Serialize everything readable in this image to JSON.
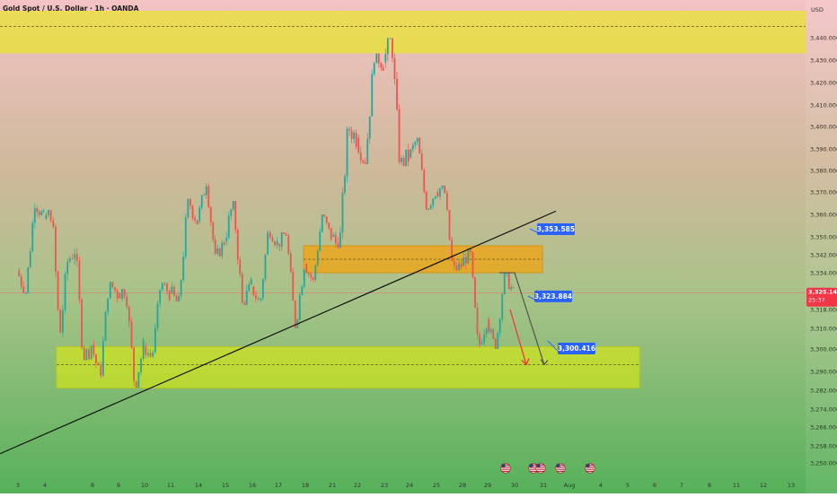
{
  "symbol_title": "Gold Spot / U.S. Dollar · 1h · OANDA",
  "currency": "USD",
  "colors": {
    "bg_top": "#f3bfc2",
    "bg_bottom": "#4caf50",
    "up": "#26a69a",
    "down": "#ef5350",
    "zone_yellow": "#e6f000",
    "zone_orange": "#f2a30f",
    "callout": "#2962ff",
    "price_badge": "#f23645",
    "arrow_red": "#f23645",
    "arrow_gray": "#4a4a4a"
  },
  "current_price": {
    "label": "3,325.140",
    "countdown": "25:37",
    "value": 3325.14
  },
  "callouts": [
    {
      "label": "3,353.585",
      "value": 3353.585
    },
    {
      "label": "3,323.884",
      "value": 3323.884
    },
    {
      "label": "3,300.416",
      "value": 3300.416
    }
  ],
  "event_icons": [
    "us-flag-icon",
    "us-flag-icon",
    "us-flag-icon",
    "us-flag-icon",
    "us-flag-icon"
  ],
  "chart_data": {
    "type": "candlestick",
    "title": "Gold Spot / U.S. Dollar · 1h · OANDA",
    "ylabel": "USD",
    "ylim": [
      3246,
      3452
    ],
    "y_ticks": [
      "3,440.000",
      "3,430.000",
      "3,420.000",
      "3,410.000",
      "3,400.000",
      "3,390.000",
      "3,380.000",
      "3,370.000",
      "3,360.000",
      "3,350.000",
      "3,342.000",
      "3,334.000",
      "3,318.000",
      "3,310.000",
      "3,300.000",
      "3,290.000",
      "3,282.000",
      "3,274.000",
      "3,266.000",
      "3,258.000",
      "3,250.000"
    ],
    "y_tick_values": [
      3440,
      3430,
      3420,
      3410,
      3400,
      3390,
      3380,
      3370,
      3360,
      3350,
      3342,
      3334,
      3318,
      3310,
      3300,
      3290,
      3282,
      3274,
      3266,
      3258,
      3250
    ],
    "x_ticks": [
      "3",
      "4",
      "8",
      "9",
      "10",
      "11",
      "14",
      "15",
      "16",
      "17",
      "18",
      "21",
      "22",
      "23",
      "24",
      "25",
      "28",
      "29",
      "30",
      "31",
      "Aug",
      "4",
      "5",
      "6",
      "7",
      "8",
      "11",
      "12",
      "13"
    ],
    "daily_ohlc": [
      {
        "date": "3",
        "o": 3335,
        "h": 3366,
        "l": 3325,
        "c": 3358
      },
      {
        "date": "4",
        "o": 3358,
        "h": 3362,
        "l": 3305,
        "c": 3339
      },
      {
        "date": "7",
        "o": 3339,
        "h": 3345,
        "l": 3295,
        "c": 3302
      },
      {
        "date": "8",
        "o": 3302,
        "h": 3330,
        "l": 3287,
        "c": 3325
      },
      {
        "date": "9",
        "o": 3325,
        "h": 3327,
        "l": 3283,
        "c": 3301
      },
      {
        "date": "10",
        "o": 3301,
        "h": 3330,
        "l": 3296,
        "c": 3325
      },
      {
        "date": "11",
        "o": 3325,
        "h": 3367,
        "l": 3320,
        "c": 3357
      },
      {
        "date": "14",
        "o": 3357,
        "h": 3375,
        "l": 3340,
        "c": 3348
      },
      {
        "date": "15",
        "o": 3348,
        "h": 3366,
        "l": 3320,
        "c": 3328
      },
      {
        "date": "16",
        "o": 3328,
        "h": 3354,
        "l": 3320,
        "c": 3347
      },
      {
        "date": "17",
        "o": 3347,
        "h": 3352,
        "l": 3310,
        "c": 3338
      },
      {
        "date": "18",
        "o": 3338,
        "h": 3360,
        "l": 3330,
        "c": 3350
      },
      {
        "date": "21",
        "o": 3350,
        "h": 3400,
        "l": 3345,
        "c": 3395
      },
      {
        "date": "22",
        "o": 3395,
        "h": 3433,
        "l": 3383,
        "c": 3429
      },
      {
        "date": "23",
        "o": 3429,
        "h": 3440,
        "l": 3382,
        "c": 3386
      },
      {
        "date": "24",
        "o": 3386,
        "h": 3395,
        "l": 3362,
        "c": 3370
      },
      {
        "date": "25",
        "o": 3370,
        "h": 3373,
        "l": 3335,
        "c": 3337
      },
      {
        "date": "28",
        "o": 3337,
        "h": 3345,
        "l": 3300,
        "c": 3314
      },
      {
        "date": "29",
        "o": 3314,
        "h": 3334,
        "l": 3300,
        "c": 3325
      }
    ],
    "annotations": [
      {
        "type": "zone",
        "label": "resistance",
        "from": 3433,
        "to": 3452
      },
      {
        "type": "zone",
        "label": "order-block",
        "from": 3334,
        "to": 3346
      },
      {
        "type": "zone",
        "label": "support",
        "from": 3283,
        "to": 3301
      },
      {
        "type": "level",
        "value": 3445
      },
      {
        "type": "level",
        "value": 3340
      },
      {
        "type": "level",
        "value": 3293
      },
      {
        "type": "trendline",
        "from_date": "3",
        "from_value": 3258,
        "to_date": "31",
        "to_value": 3359
      },
      {
        "type": "projection",
        "path": [
          3334,
          3334,
          3293
        ],
        "style": "gray"
      },
      {
        "type": "projection",
        "path": [
          3318,
          3293
        ],
        "style": "red"
      }
    ]
  }
}
